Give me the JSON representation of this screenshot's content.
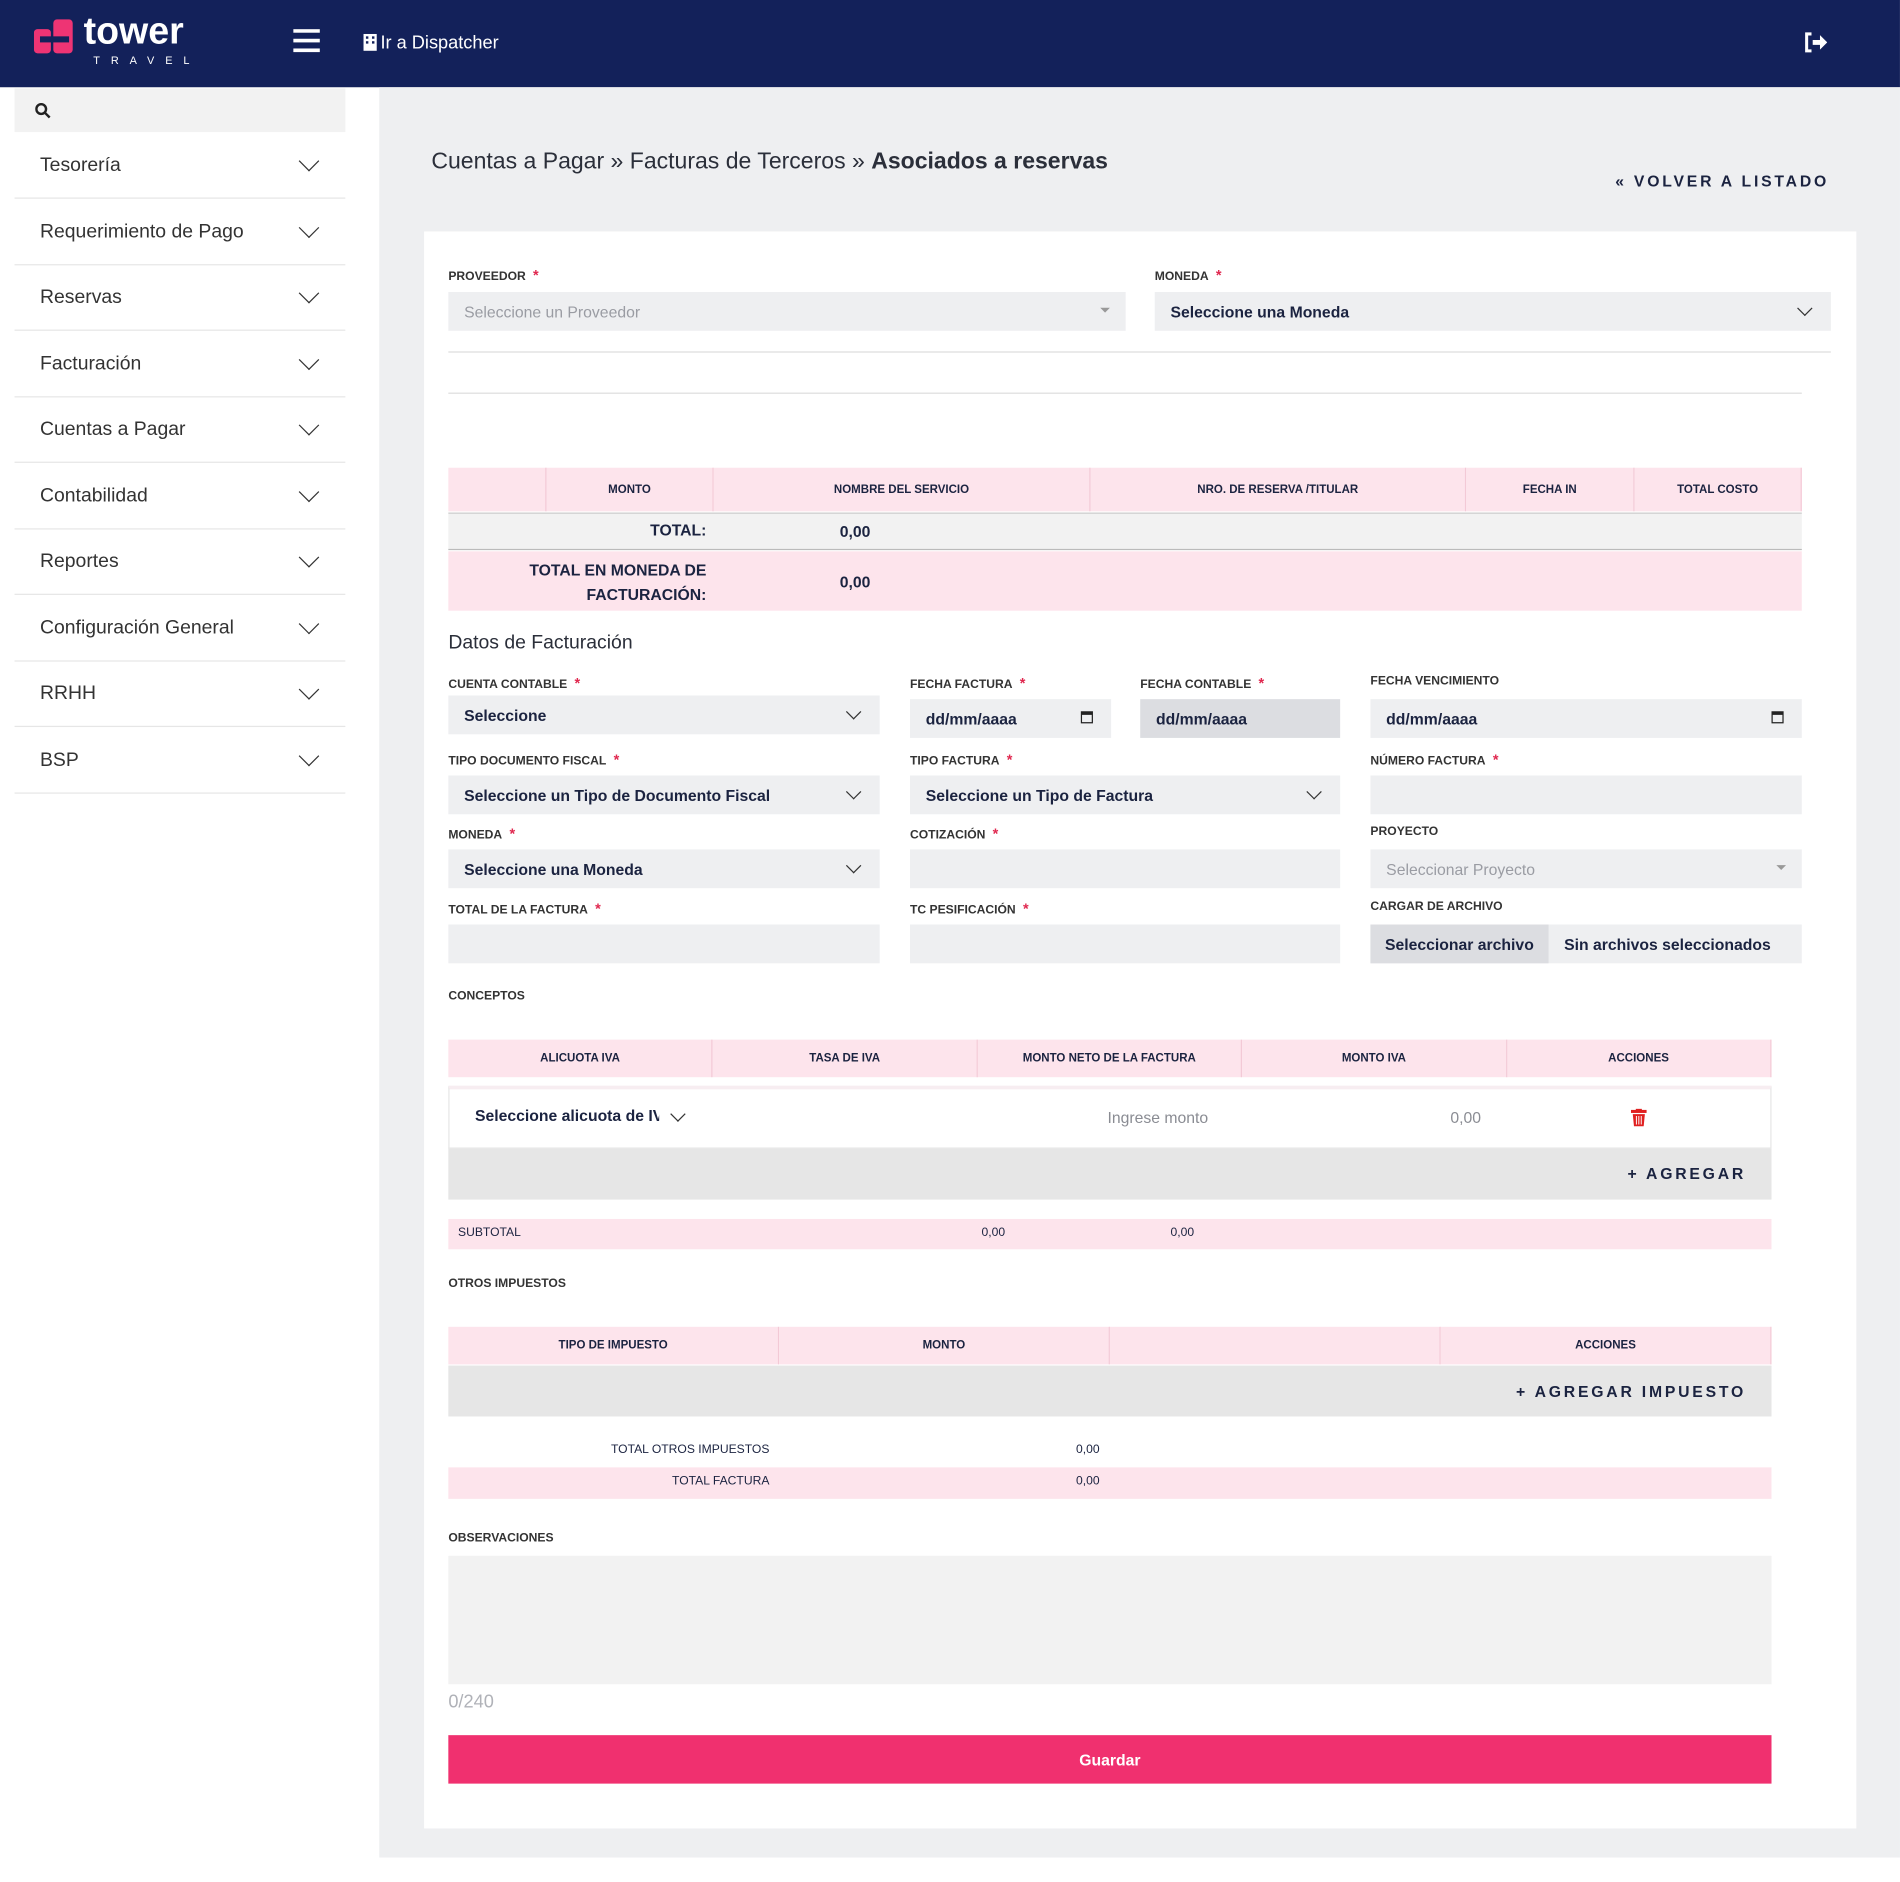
{
  "header": {
    "logo": "tower",
    "logo_sub": "TRAVEL",
    "dispatcher": "Ir a Dispatcher"
  },
  "sidebar": {
    "menu": [
      "Tesorería",
      "Requerimiento de Pago",
      "Reservas",
      "Facturación",
      "Cuentas a Pagar",
      "Contabilidad",
      "Reportes",
      "Configuración General",
      "RRHH",
      "BSP"
    ]
  },
  "breadcrumb": {
    "parts": [
      "Cuentas a Pagar",
      "Facturas de Terceros"
    ],
    "separator": "»",
    "current": "Asociados a reservas"
  },
  "back": "« VOLVER A LISTADO",
  "required_mark": "*",
  "top_form": {
    "proveedor": {
      "label": "PROVEEDOR",
      "placeholder": "Seleccione un Proveedor"
    },
    "moneda": {
      "label": "MONEDA",
      "placeholder": "Seleccione una Moneda"
    }
  },
  "reservas_table": {
    "columns": [
      "MONTO",
      "NOMBRE DEL SERVICIO",
      "NRO. DE RESERVA /TITULAR",
      "FECHA IN",
      "TOTAL COSTO"
    ],
    "total_label": "TOTAL:",
    "total": "0,00",
    "total_moneda_label": "TOTAL EN MONEDA DE FACTURACIÓN:",
    "total_moneda": "0,00"
  },
  "facturacion": {
    "title": "Datos de Facturación",
    "fields": [
      {
        "label": "CUENTA CONTABLE",
        "required": true,
        "value": "Seleccione",
        "kind": "select"
      },
      {
        "label": "FECHA FACTURA",
        "required": true,
        "value": "dd/mm/aaaa",
        "kind": "date"
      },
      {
        "label": "FECHA CONTABLE",
        "required": true,
        "value": "dd/mm/aaaa",
        "kind": "disabled"
      },
      {
        "label": "FECHA VENCIMIENTO",
        "required": false,
        "value": "dd/mm/aaaa",
        "kind": "date"
      },
      {
        "label": "TIPO DOCUMENTO FISCAL",
        "required": true,
        "value": "Seleccione un Tipo de Documento Fiscal",
        "kind": "select"
      },
      {
        "label": "TIPO FACTURA",
        "required": true,
        "value": "Seleccione un Tipo de Factura",
        "kind": "select"
      },
      {
        "label": "NÚMERO FACTURA",
        "required": true,
        "kind": "input"
      },
      {
        "label": "MONEDA",
        "required": true,
        "value": "Seleccione una Moneda",
        "kind": "select"
      },
      {
        "label": "COTIZACIÓN",
        "required": true,
        "kind": "input"
      },
      {
        "label": "PROYECTO",
        "required": false,
        "value": "Seleccionar Proyecto",
        "kind": "placeholder-select"
      },
      {
        "label": "TOTAL DE LA FACTURA",
        "required": true,
        "kind": "input"
      },
      {
        "label": "TC PESIFICACIÓN",
        "required": true,
        "kind": "input"
      },
      {
        "label": "CARGAR DE ARCHIVO",
        "required": false,
        "value": "Sin archivos seleccionados",
        "button": "Seleccionar archivo",
        "kind": "file"
      }
    ]
  },
  "conceptos": {
    "title": "CONCEPTOS",
    "columns": [
      "ALICUOTA IVA",
      "TASA DE IVA",
      "MONTO NETO DE LA FACTURA",
      "MONTO IVA",
      "ACCIONES"
    ],
    "row": {
      "alicuota": "Seleccione alicuota de IVA",
      "monto": "Ingrese monto",
      "iva": "0,00"
    },
    "add": "+ AGREGAR",
    "subtotal_label": "SUBTOTAL",
    "subtotal": [
      "0,00",
      "0,00"
    ]
  },
  "otros": {
    "title": "OTROS IMPUESTOS",
    "columns": [
      "TIPO DE IMPUESTO",
      "MONTO",
      "ACCIONES"
    ],
    "add": "+ AGREGAR IMPUESTO"
  },
  "totals": {
    "otros_label": "TOTAL OTROS IMPUESTOS",
    "otros": "0,00",
    "factura_label": "TOTAL FACTURA",
    "factura": "0,00"
  },
  "observaciones": {
    "label": "OBSERVACIONES",
    "counter": "0/240"
  },
  "save": "Guardar"
}
